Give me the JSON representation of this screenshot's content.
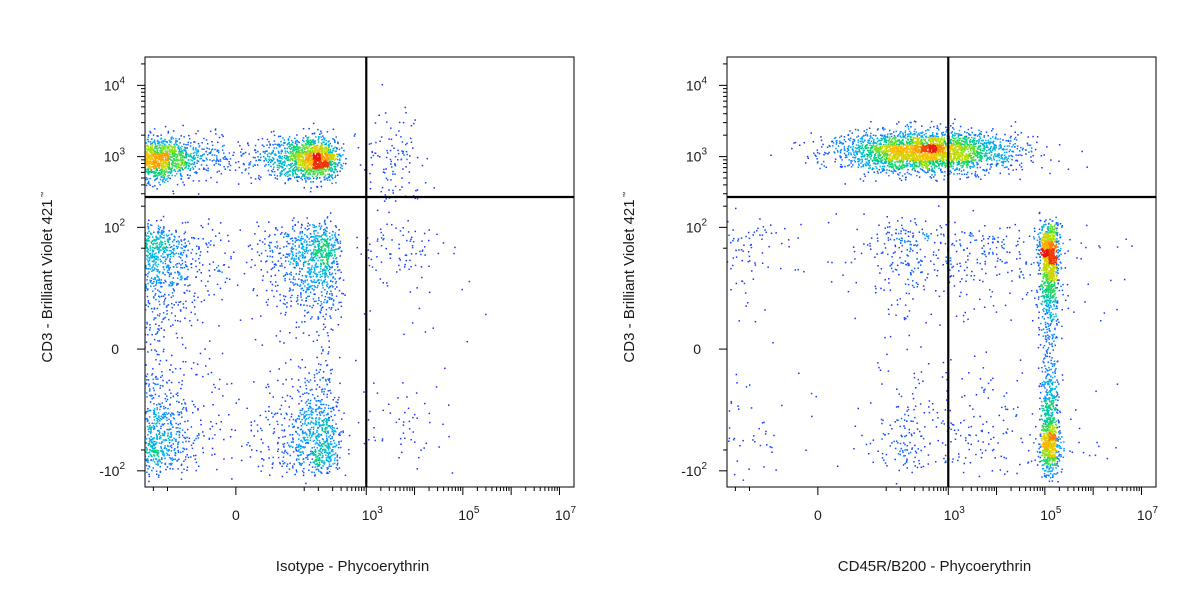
{
  "chart_data": [
    {
      "type": "scatter",
      "panel": "left",
      "xlabel": "Isotype - Phycoerythrin",
      "ylabel": "CD3 - Brilliant Violet 421",
      "ylabel_mark": "™",
      "x_scale": "biexponential",
      "y_scale": "biexponential",
      "xlim": [
        -150,
        20000000
      ],
      "ylim": [
        -170,
        25000
      ],
      "x_ticks": [
        {
          "value": 0,
          "base": "0",
          "exp": ""
        },
        {
          "value": 1000,
          "base": "10",
          "exp": "3"
        },
        {
          "value": 100000,
          "base": "10",
          "exp": "5"
        },
        {
          "value": 10000000,
          "base": "10",
          "exp": "7"
        }
      ],
      "y_ticks": [
        {
          "value": -100,
          "base": "-10",
          "exp": "2"
        },
        {
          "value": 0,
          "base": "0",
          "exp": ""
        },
        {
          "value": 100,
          "base": "10",
          "exp": "2"
        },
        {
          "value": 1000,
          "base": "10",
          "exp": "3"
        },
        {
          "value": 10000,
          "base": "10",
          "exp": "4"
        }
      ],
      "gate": {
        "x": 1000,
        "y": 270
      },
      "populations": [
        {
          "name": "",
          "center": {
            "x": 10,
            "y": 950
          },
          "spread": {
            "x": 100,
            "y": 0.15
          },
          "count": 2600
        },
        {
          "name": "",
          "center": {
            "x": 10,
            "y": 5
          },
          "spread": {
            "x": 110,
            "y": 45
          },
          "count": 3200
        },
        {
          "name": "",
          "center": {
            "x": 3000,
            "y": 800
          },
          "spread": {
            "x": 0.35,
            "y": 0.35
          },
          "count": 120
        },
        {
          "name": "",
          "center": {
            "x": 5000,
            "y": 20
          },
          "spread": {
            "x": 0.6,
            "y": 45
          },
          "count": 160
        }
      ]
    },
    {
      "type": "scatter",
      "panel": "right",
      "xlabel": "CD45R/B200 - Phycoerythrin",
      "ylabel": "CD3 - Brilliant Violet 421",
      "ylabel_mark": "™",
      "x_scale": "biexponential",
      "y_scale": "biexponential",
      "xlim": [
        -150,
        20000000
      ],
      "ylim": [
        -170,
        25000
      ],
      "x_ticks": [
        {
          "value": 0,
          "base": "0",
          "exp": ""
        },
        {
          "value": 1000,
          "base": "10",
          "exp": "3"
        },
        {
          "value": 100000,
          "base": "10",
          "exp": "5"
        },
        {
          "value": 10000000,
          "base": "10",
          "exp": "7"
        }
      ],
      "y_ticks": [
        {
          "value": -100,
          "base": "-10",
          "exp": "2"
        },
        {
          "value": 0,
          "base": "0",
          "exp": ""
        },
        {
          "value": 100,
          "base": "10",
          "exp": "2"
        },
        {
          "value": 1000,
          "base": "10",
          "exp": "3"
        },
        {
          "value": 10000,
          "base": "10",
          "exp": "4"
        }
      ],
      "gate": {
        "x": 1000,
        "y": 270
      },
      "populations": [
        {
          "name": "",
          "center": {
            "x": 300,
            "y": 1200
          },
          "spread": {
            "x": 0.9,
            "y": 0.14
          },
          "count": 2900
        },
        {
          "name": "",
          "center": {
            "x": 120000,
            "y": 5
          },
          "spread": {
            "x": 0.1,
            "y": 45
          },
          "count": 1900
        },
        {
          "name": "",
          "center": {
            "x": 4000,
            "y": 10
          },
          "spread": {
            "x": 1.2,
            "y": 50
          },
          "count": 600
        },
        {
          "name": "",
          "center": {
            "x": 50,
            "y": 20
          },
          "spread": {
            "x": 120,
            "y": 50
          },
          "count": 350
        }
      ]
    }
  ]
}
